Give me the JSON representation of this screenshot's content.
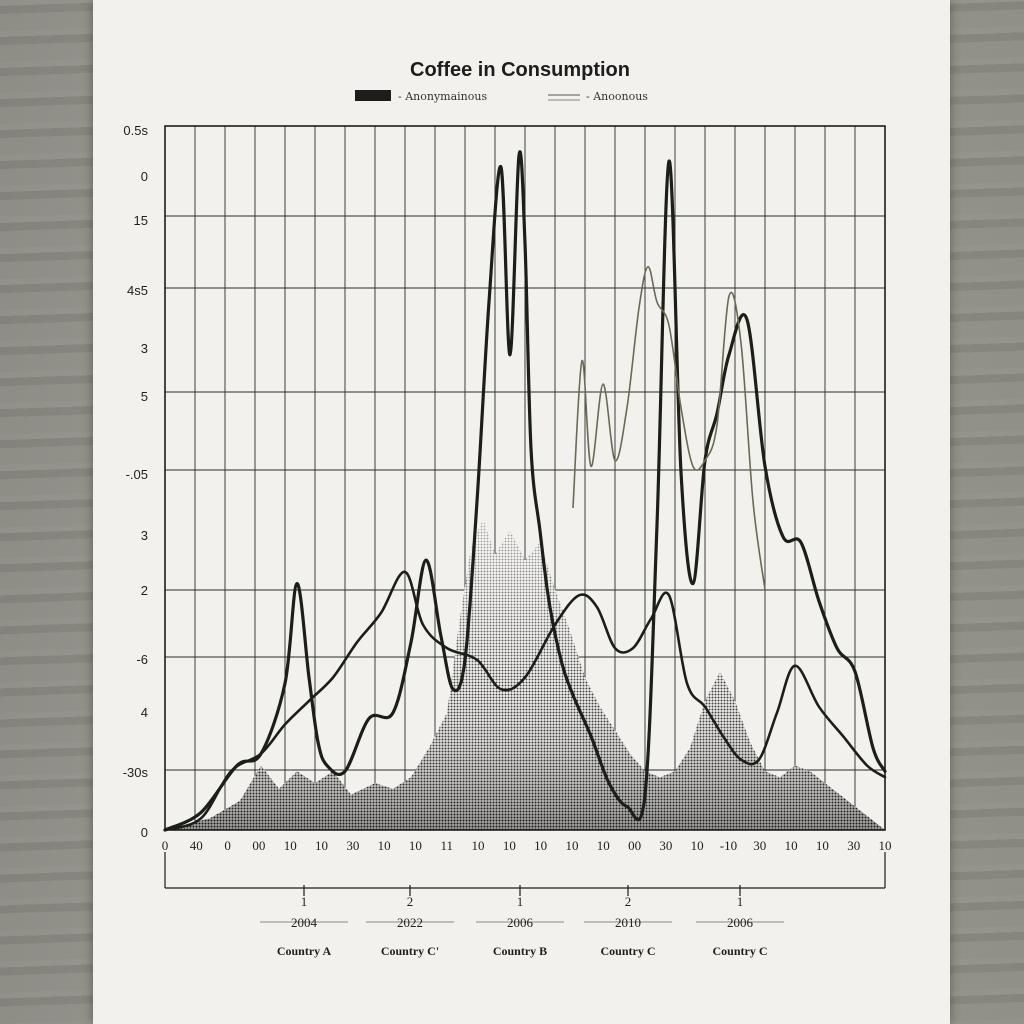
{
  "chart_data": {
    "type": "line",
    "title": "Coffee in Consumption",
    "legend": [
      {
        "label": "- Anonymainous",
        "style": "solid-dark"
      },
      {
        "label": "- Anoonous",
        "style": "thin-line"
      }
    ],
    "y_tick_labels": [
      "0.5s",
      "0",
      "15",
      "4s5",
      "3",
      "5",
      "-.05",
      "3",
      "2",
      "-6",
      "4",
      "-30s",
      "0"
    ],
    "x_tick_labels": [
      "0",
      "40",
      "0",
      "00",
      "10",
      "10",
      "30",
      "10",
      "10",
      "11",
      "10",
      "10",
      "10",
      "10",
      "10",
      "00",
      "30",
      "10",
      "-10",
      "30",
      "10",
      "10",
      "30",
      "10"
    ],
    "groups": [
      {
        "number": "1",
        "year": "2004",
        "country": "Country A"
      },
      {
        "number": "2",
        "year": "2022",
        "country": "Country C'"
      },
      {
        "number": "1",
        "year": "2006",
        "country": "Country B"
      },
      {
        "number": "2",
        "year": "2010",
        "country": "Country C"
      },
      {
        "number": "1",
        "year": "2006",
        "country": "Country C"
      }
    ],
    "ylim": [
      0,
      12
    ],
    "xlim": [
      0,
      24
    ],
    "grid": true,
    "series": [
      {
        "name": "- Anonymainous",
        "role": "main",
        "x": [
          0,
          1.2,
          2.4,
          3.2,
          4.0,
          4.4,
          4.8,
          5.1,
          5.4,
          6.0,
          6.8,
          7.6,
          8.2,
          8.7,
          9.2,
          9.6,
          10.0,
          10.4,
          10.8,
          11.2,
          11.5,
          11.8,
          12.0,
          12.2,
          12.5,
          12.8,
          13.2,
          13.6,
          14.2,
          14.8,
          15.4,
          16.0,
          16.4,
          16.8,
          17.2,
          17.6,
          18.0,
          18.4,
          18.8,
          19.4,
          20.0,
          20.6,
          21.2,
          21.8,
          22.4,
          23.0,
          23.6,
          24.0
        ],
        "y": [
          0,
          0.3,
          1.1,
          1.3,
          2.5,
          4.2,
          2.6,
          1.5,
          1.1,
          1.0,
          1.9,
          2.0,
          3.2,
          4.6,
          3.3,
          2.4,
          2.9,
          5.6,
          9.0,
          11.3,
          8.1,
          11.5,
          10.0,
          6.5,
          5.1,
          3.9,
          2.9,
          2.3,
          1.6,
          0.8,
          0.4,
          0.6,
          5.2,
          11.4,
          6.1,
          4.2,
          6.3,
          7.1,
          8.1,
          8.7,
          6.2,
          5.0,
          4.9,
          3.9,
          3.1,
          2.7,
          1.4,
          1.0
        ]
      },
      {
        "name": "- Anoonous",
        "role": "secondary",
        "x": [
          0,
          1.2,
          2.2,
          3.2,
          4.0,
          4.8,
          5.6,
          6.4,
          7.2,
          8.0,
          8.6,
          9.4,
          10.4,
          11.2,
          12.0,
          13.0,
          13.8,
          14.4,
          15.0,
          15.6,
          16.2,
          16.8,
          17.4,
          18.0,
          18.6,
          19.2,
          19.8,
          20.4,
          21.0,
          21.8,
          22.6,
          23.4,
          24.0
        ],
        "y": [
          0,
          0.2,
          1.0,
          1.3,
          1.8,
          2.2,
          2.6,
          3.2,
          3.7,
          4.4,
          3.5,
          3.1,
          2.9,
          2.4,
          2.6,
          3.5,
          4.0,
          3.8,
          3.1,
          3.1,
          3.6,
          4.0,
          2.5,
          2.1,
          1.6,
          1.2,
          1.2,
          2.0,
          2.8,
          2.1,
          1.6,
          1.1,
          0.9
        ]
      },
      {
        "name": "",
        "role": "thin",
        "x": [
          13.6,
          13.9,
          14.2,
          14.6,
          15.0,
          15.4,
          15.8,
          16.1,
          16.4,
          16.8,
          17.2,
          17.6,
          18.0,
          18.4,
          18.8,
          19.2,
          19.6,
          20.0
        ],
        "y": [
          5.5,
          8.0,
          6.2,
          7.6,
          6.3,
          7.2,
          8.9,
          9.6,
          9.0,
          8.6,
          7.2,
          6.2,
          6.3,
          6.9,
          9.1,
          8.3,
          5.6,
          4.1
        ]
      }
    ],
    "density_area": {
      "x": [
        0,
        1.5,
        2.5,
        3.2,
        3.8,
        4.4,
        5.0,
        5.6,
        6.2,
        7.0,
        7.6,
        8.2,
        8.8,
        9.4,
        9.8,
        10.2,
        10.6,
        11.0,
        11.5,
        12.0,
        12.5,
        13.0,
        13.5,
        14.0,
        14.5,
        15.0,
        15.5,
        16.0,
        16.5,
        17.0,
        17.5,
        18.0,
        18.5,
        19.0,
        19.5,
        20.0,
        20.5,
        21.0,
        21.5,
        22.0,
        22.5,
        23.0,
        23.5,
        24.0
      ],
      "y": [
        0,
        0.2,
        0.5,
        1.1,
        0.7,
        1.0,
        0.8,
        1.0,
        0.6,
        0.8,
        0.7,
        0.9,
        1.4,
        2.0,
        3.5,
        4.8,
        5.3,
        4.7,
        5.1,
        4.6,
        4.9,
        4.1,
        3.4,
        2.6,
        2.1,
        1.7,
        1.3,
        1.0,
        0.9,
        1.0,
        1.4,
        2.2,
        2.7,
        2.2,
        1.5,
        1.0,
        0.9,
        1.1,
        1.0,
        0.8,
        0.6,
        0.4,
        0.2,
        0
      ]
    }
  }
}
